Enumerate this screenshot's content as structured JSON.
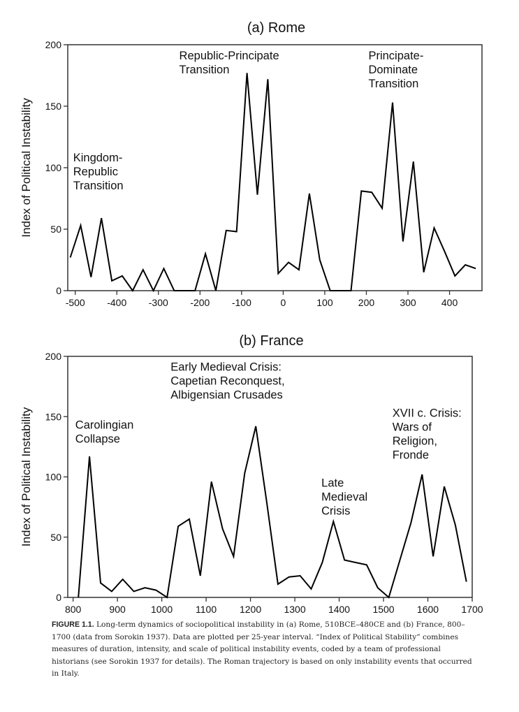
{
  "chart_data": [
    {
      "type": "line",
      "title": "(a) Rome",
      "xlabel": "",
      "ylabel": "Index of Political Instability",
      "xlim": [
        -518,
        478
      ],
      "ylim": [
        0,
        200
      ],
      "xticks": [
        -500,
        -400,
        -300,
        -200,
        -100,
        0,
        100,
        200,
        300,
        400
      ],
      "yticks": [
        0,
        50,
        100,
        150,
        200
      ],
      "x": [
        -512,
        -487,
        -462,
        -437,
        -412,
        -387,
        -362,
        -337,
        -312,
        -287,
        -262,
        -237,
        -212,
        -187,
        -162,
        -137,
        -112,
        -87,
        -62,
        -37,
        -12,
        13,
        38,
        63,
        88,
        113,
        138,
        163,
        188,
        213,
        238,
        263,
        288,
        313,
        338,
        363,
        388,
        413,
        438,
        463
      ],
      "y": [
        27,
        53,
        11,
        59,
        8,
        12,
        0,
        17,
        0,
        18,
        0,
        0,
        0,
        30,
        0,
        49,
        48,
        177,
        78,
        172,
        14,
        23,
        17,
        79,
        25,
        0,
        0,
        0,
        81,
        80,
        67,
        153,
        40,
        105,
        15,
        51,
        32,
        12,
        21,
        18
      ],
      "annotations": [
        {
          "text": [
            "Kingdom-",
            "Republic",
            "Transition"
          ],
          "x": -505,
          "y": 105
        },
        {
          "text": [
            "Republic-Principate",
            "Transition"
          ],
          "x": -250,
          "y": 188
        },
        {
          "text": [
            "Principate-",
            "Dominate",
            "Transition"
          ],
          "x": 205,
          "y": 188
        }
      ]
    },
    {
      "type": "line",
      "title": "(b) France",
      "xlabel": "",
      "ylabel": "Index of Political Instability",
      "xlim": [
        788,
        1700
      ],
      "ylim": [
        0,
        200
      ],
      "xticks": [
        800,
        900,
        1000,
        1100,
        1200,
        1300,
        1400,
        1500,
        1600,
        1700
      ],
      "yticks": [
        0,
        50,
        100,
        150,
        200
      ],
      "x": [
        812,
        837,
        862,
        887,
        912,
        937,
        962,
        987,
        1012,
        1037,
        1062,
        1087,
        1112,
        1137,
        1162,
        1187,
        1212,
        1237,
        1262,
        1287,
        1312,
        1337,
        1362,
        1387,
        1412,
        1437,
        1462,
        1487,
        1512,
        1537,
        1562,
        1587,
        1612,
        1637,
        1662,
        1687
      ],
      "y": [
        0,
        117,
        12,
        5,
        15,
        5,
        8,
        6,
        0,
        59,
        65,
        18,
        96,
        57,
        34,
        103,
        142,
        78,
        11,
        17,
        18,
        7,
        29,
        63,
        31,
        29,
        27,
        8,
        0,
        31,
        62,
        102,
        34,
        92,
        60,
        13
      ],
      "annotations": [
        {
          "text": [
            "Carolingian",
            "Collapse"
          ],
          "x": 805,
          "y": 140
        },
        {
          "text": [
            "Early Medieval Crisis:",
            "Capetian Reconquest,",
            "Albigensian Crusades"
          ],
          "x": 1020,
          "y": 188
        },
        {
          "text": [
            "Late",
            "Medieval",
            "Crisis"
          ],
          "x": 1360,
          "y": 92
        },
        {
          "text": [
            "XVII c. Crisis:",
            "Wars of",
            "Religion,",
            "Fronde"
          ],
          "x": 1520,
          "y": 150
        }
      ]
    }
  ],
  "caption": {
    "label": "FIGURE 1.1.",
    "text": " Long-term dynamics of sociopolitical instability in (a) Rome, 510BCE–480CE and (b) France, 800–1700 (data from Sorokin 1937). Data are plotted per 25-year interval. “Index of Political Stability” combines measures of duration, intensity, and scale of political instability events, coded by a team of professional historians (see Sorokin 1937 for details). The Roman trajectory is based on only instability events that occurred in Italy."
  }
}
